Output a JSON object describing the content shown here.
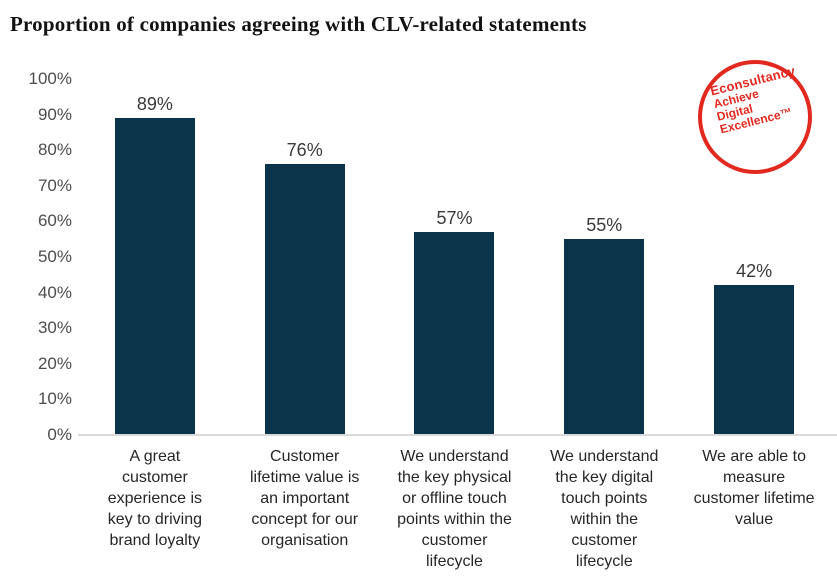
{
  "title": "Proportion of companies agreeing with CLV-related statements",
  "logo": {
    "brand": "Econsultancy",
    "line2": "Achieve",
    "line3": "Digital",
    "line4": "Excellence™",
    "color": "#e2291f"
  },
  "chart_data": {
    "type": "bar",
    "title": "Proportion of companies agreeing with CLV-related statements",
    "categories": [
      "A great customer experience is key to driving brand loyalty",
      "Customer lifetime value is an important concept for our organisation",
      "We understand the key physical or offline touch points within the customer lifecycle",
      "We understand the key digital touch points within the customer lifecycle",
      "We are able to measure customer lifetime value"
    ],
    "category_lines": [
      [
        "A great",
        "customer",
        "experience is",
        "key to driving",
        "brand loyalty"
      ],
      [
        "Customer",
        "lifetime value is",
        "an important",
        "concept for our",
        "organisation"
      ],
      [
        "We understand",
        "the key physical",
        "or offline touch",
        "points within the",
        "customer",
        "lifecycle"
      ],
      [
        "We understand",
        "the key digital",
        "touch points",
        "within the",
        "customer",
        "lifecycle"
      ],
      [
        "We are able to",
        "measure",
        "customer lifetime",
        "value"
      ]
    ],
    "values": [
      89,
      76,
      57,
      55,
      42
    ],
    "value_labels": [
      "89%",
      "76%",
      "57%",
      "55%",
      "42%"
    ],
    "xlabel": "",
    "ylabel": "",
    "ylim": [
      0,
      100
    ],
    "yticks": [
      {
        "value": 100,
        "label": "100%"
      },
      {
        "value": 90,
        "label": "90%"
      },
      {
        "value": 80,
        "label": "80%"
      },
      {
        "value": 70,
        "label": "70%"
      },
      {
        "value": 60,
        "label": "60%"
      },
      {
        "value": 50,
        "label": "50%"
      },
      {
        "value": 40,
        "label": "40%"
      },
      {
        "value": 30,
        "label": "30%"
      },
      {
        "value": 20,
        "label": "20%"
      },
      {
        "value": 10,
        "label": "10%"
      },
      {
        "value": 0,
        "label": "0%"
      }
    ],
    "bar_color": "#0a3449",
    "axis_line_color": "#d9d9d9",
    "grid": false,
    "legend": false
  }
}
